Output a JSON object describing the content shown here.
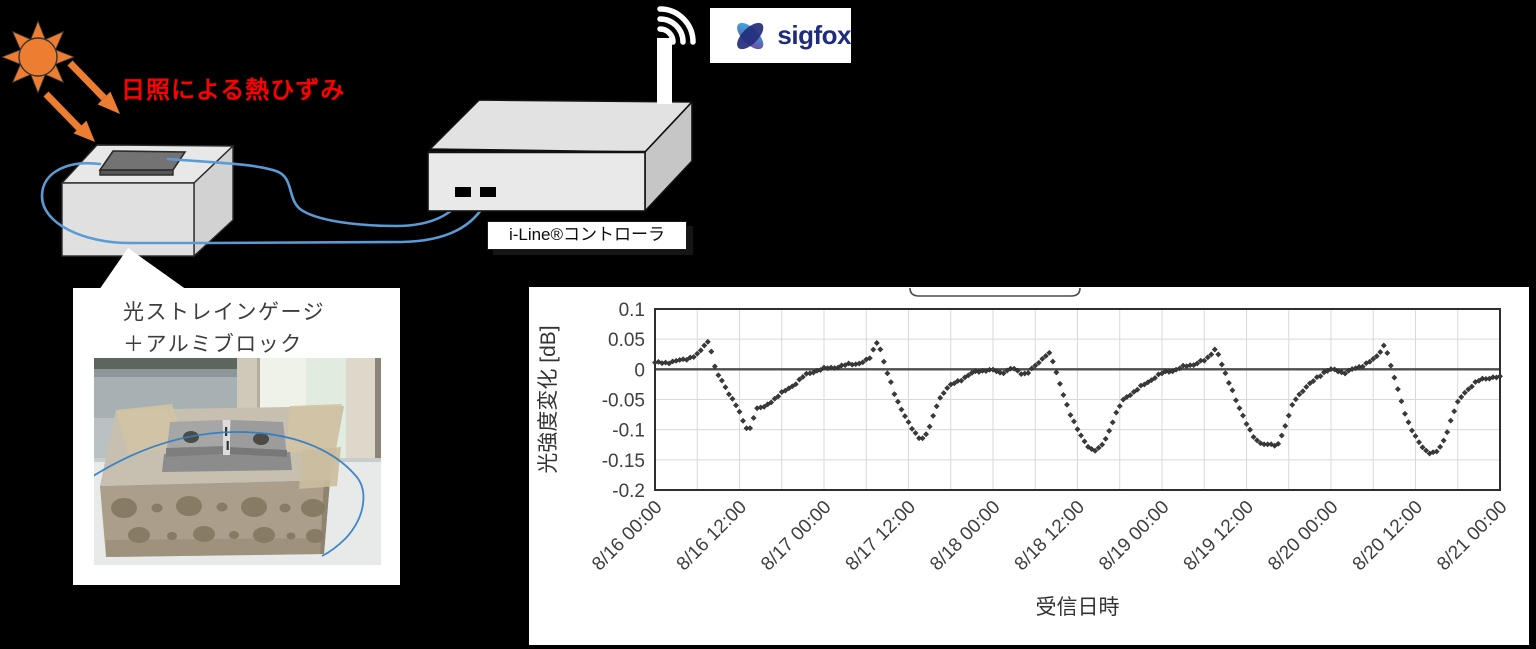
{
  "scene": {
    "annotation": {
      "text": "日照による熱ひずみ",
      "color": "#FF0000"
    },
    "sun_color": "#ED7D31",
    "fiber_color": "#5B9BD5",
    "controller": {
      "label": "i-Line®コントローラ"
    },
    "sigfox": {
      "wordmark": "sigfox",
      "navy": "#232D7B",
      "cyan": "#3FB9E5",
      "purple": "#7A3B97"
    },
    "callout": {
      "line1": "光ストレインゲージ",
      "line2": "＋アルミブロック"
    },
    "icons": [
      "sun-icon",
      "solar-ray-arrow-icon",
      "antenna-icon",
      "wifi-signal-icon",
      "sigfox-butterfly-icon"
    ]
  },
  "chart_data": {
    "type": "scatter",
    "title": "",
    "xlabel": "受信日時",
    "ylabel": "光強度変化 [dB]",
    "ylim": [
      -0.2,
      0.1
    ],
    "ytick_values": [
      0.1,
      0.05,
      0,
      -0.05,
      -0.1,
      -0.15,
      -0.2
    ],
    "x_tick_hours": [
      0,
      12,
      24,
      36,
      48,
      60,
      72,
      84,
      96,
      108,
      120
    ],
    "x_tick_labels": [
      "8/16 00:00",
      "8/16 12:00",
      "8/17 00:00",
      "8/17 12:00",
      "8/18 00:00",
      "8/18 12:00",
      "8/19 00:00",
      "8/19 12:00",
      "8/20 00:00",
      "8/20 12:00",
      "8/21 00:00"
    ],
    "x_range_hours": [
      0,
      120
    ],
    "x_minor_grid_hours": 6,
    "grid": true,
    "legend": false,
    "marker": "diamond",
    "marker_color": "#3a3a3a",
    "sample_step_hours": 0.5,
    "series": [
      {
        "name": "光強度変化 [dB]",
        "keypoints": [
          [
            0,
            0.01
          ],
          [
            1,
            0.011
          ],
          [
            2,
            0.012
          ],
          [
            3,
            0.013
          ],
          [
            4,
            0.016
          ],
          [
            5,
            0.02
          ],
          [
            5.8,
            0.022
          ],
          [
            6.5,
            0.03
          ],
          [
            7.0,
            0.04
          ],
          [
            7.5,
            0.046
          ],
          [
            7.9,
            0.038
          ],
          [
            8.3,
            0.013
          ],
          [
            8.7,
            -0.005
          ],
          [
            9.3,
            -0.016
          ],
          [
            10,
            -0.03
          ],
          [
            10.7,
            -0.043
          ],
          [
            11.4,
            -0.056
          ],
          [
            12.1,
            -0.075
          ],
          [
            12.7,
            -0.092
          ],
          [
            13.2,
            -0.101
          ],
          [
            13.7,
            -0.094
          ],
          [
            14.2,
            -0.068
          ],
          [
            14.8,
            -0.063
          ],
          [
            15.4,
            -0.065
          ],
          [
            16,
            -0.058
          ],
          [
            16.8,
            -0.05
          ],
          [
            17.6,
            -0.043
          ],
          [
            18.5,
            -0.036
          ],
          [
            19.4,
            -0.028
          ],
          [
            20.3,
            -0.02
          ],
          [
            21.2,
            -0.011
          ],
          [
            22.2,
            -0.005
          ],
          [
            23.2,
            -0.001
          ],
          [
            24.2,
            0.001
          ],
          [
            25.2,
            0.003
          ],
          [
            26.2,
            0.005
          ],
          [
            27.2,
            0.007
          ],
          [
            28.2,
            0.009
          ],
          [
            29.2,
            0.011
          ],
          [
            30,
            0.014
          ],
          [
            30.7,
            0.02
          ],
          [
            31.3,
            0.044
          ],
          [
            31.7,
            0.047
          ],
          [
            32.1,
            0.03
          ],
          [
            32.5,
            0.012
          ],
          [
            32.9,
            -0.004
          ],
          [
            33.4,
            -0.02
          ],
          [
            34,
            -0.04
          ],
          [
            34.7,
            -0.058
          ],
          [
            35.4,
            -0.075
          ],
          [
            36.1,
            -0.092
          ],
          [
            36.8,
            -0.104
          ],
          [
            37.5,
            -0.112
          ],
          [
            38.2,
            -0.114
          ],
          [
            38.8,
            -0.102
          ],
          [
            39.4,
            -0.083
          ],
          [
            40,
            -0.06
          ],
          [
            40.6,
            -0.044
          ],
          [
            41.3,
            -0.033
          ],
          [
            42,
            -0.027
          ],
          [
            43,
            -0.02
          ],
          [
            44,
            -0.013
          ],
          [
            45,
            -0.007
          ],
          [
            46,
            -0.003
          ],
          [
            47,
            -0.001
          ],
          [
            48,
            -0.002
          ],
          [
            49,
            -0.006
          ],
          [
            49.8,
            -0.003
          ],
          [
            50.6,
            0.002
          ],
          [
            51.4,
            -0.003
          ],
          [
            52.2,
            -0.008
          ],
          [
            53,
            -0.004
          ],
          [
            53.8,
            0.003
          ],
          [
            54.5,
            0.01
          ],
          [
            55.2,
            0.02
          ],
          [
            55.8,
            0.029
          ],
          [
            56.2,
            0.026
          ],
          [
            56.7,
            0.005
          ],
          [
            57.2,
            -0.015
          ],
          [
            57.8,
            -0.035
          ],
          [
            58.5,
            -0.058
          ],
          [
            59.2,
            -0.08
          ],
          [
            59.9,
            -0.098
          ],
          [
            60.6,
            -0.113
          ],
          [
            61.3,
            -0.124
          ],
          [
            62,
            -0.132
          ],
          [
            62.6,
            -0.135
          ],
          [
            63.2,
            -0.131
          ],
          [
            63.8,
            -0.12
          ],
          [
            64.4,
            -0.104
          ],
          [
            65,
            -0.086
          ],
          [
            65.7,
            -0.068
          ],
          [
            66.4,
            -0.053
          ],
          [
            67.1,
            -0.044
          ],
          [
            67.9,
            -0.038
          ],
          [
            68.8,
            -0.031
          ],
          [
            69.8,
            -0.023
          ],
          [
            70.8,
            -0.014
          ],
          [
            71.8,
            -0.008
          ],
          [
            72.8,
            -0.004
          ],
          [
            73.8,
            -0.001
          ],
          [
            74.8,
            0.003
          ],
          [
            75.8,
            0.006
          ],
          [
            76.6,
            0.009
          ],
          [
            77.4,
            0.013
          ],
          [
            78.2,
            0.014
          ],
          [
            78.8,
            0.022
          ],
          [
            79.3,
            0.032
          ],
          [
            79.7,
            0.036
          ],
          [
            80.1,
            0.022
          ],
          [
            80.5,
            0.008
          ],
          [
            80.9,
            -0.006
          ],
          [
            81.4,
            -0.02
          ],
          [
            82,
            -0.035
          ],
          [
            82.7,
            -0.055
          ],
          [
            83.4,
            -0.075
          ],
          [
            84.1,
            -0.094
          ],
          [
            84.8,
            -0.108
          ],
          [
            85.5,
            -0.117
          ],
          [
            86.2,
            -0.123
          ],
          [
            86.9,
            -0.127
          ],
          [
            87.5,
            -0.124
          ],
          [
            88,
            -0.127
          ],
          [
            88.6,
            -0.12
          ],
          [
            89.2,
            -0.104
          ],
          [
            89.8,
            -0.085
          ],
          [
            90.4,
            -0.063
          ],
          [
            91,
            -0.048
          ],
          [
            91.7,
            -0.038
          ],
          [
            92.5,
            -0.03
          ],
          [
            93.3,
            -0.022
          ],
          [
            94.1,
            -0.012
          ],
          [
            95,
            -0.005
          ],
          [
            96,
            -0.001
          ],
          [
            97,
            -0.002
          ],
          [
            97.8,
            -0.006
          ],
          [
            98.6,
            -0.003
          ],
          [
            99.4,
            0.001
          ],
          [
            100.2,
            0.005
          ],
          [
            101,
            0.01
          ],
          [
            101.8,
            0.014
          ],
          [
            102.4,
            0.019
          ],
          [
            103,
            0.03
          ],
          [
            103.5,
            0.04
          ],
          [
            103.9,
            0.034
          ],
          [
            104.3,
            0.013
          ],
          [
            104.7,
            -0.004
          ],
          [
            105.2,
            -0.022
          ],
          [
            105.8,
            -0.045
          ],
          [
            106.4,
            -0.068
          ],
          [
            107,
            -0.088
          ],
          [
            107.6,
            -0.104
          ],
          [
            108.2,
            -0.117
          ],
          [
            108.9,
            -0.127
          ],
          [
            109.6,
            -0.135
          ],
          [
            110.3,
            -0.14
          ],
          [
            111,
            -0.137
          ],
          [
            111.6,
            -0.128
          ],
          [
            112.2,
            -0.112
          ],
          [
            112.8,
            -0.092
          ],
          [
            113.4,
            -0.072
          ],
          [
            114,
            -0.056
          ],
          [
            114.6,
            -0.044
          ],
          [
            115.2,
            -0.035
          ],
          [
            115.9,
            -0.028
          ],
          [
            116.6,
            -0.022
          ],
          [
            117.4,
            -0.017
          ],
          [
            118.2,
            -0.014
          ],
          [
            119.1,
            -0.013
          ],
          [
            120,
            -0.014
          ]
        ]
      }
    ]
  }
}
